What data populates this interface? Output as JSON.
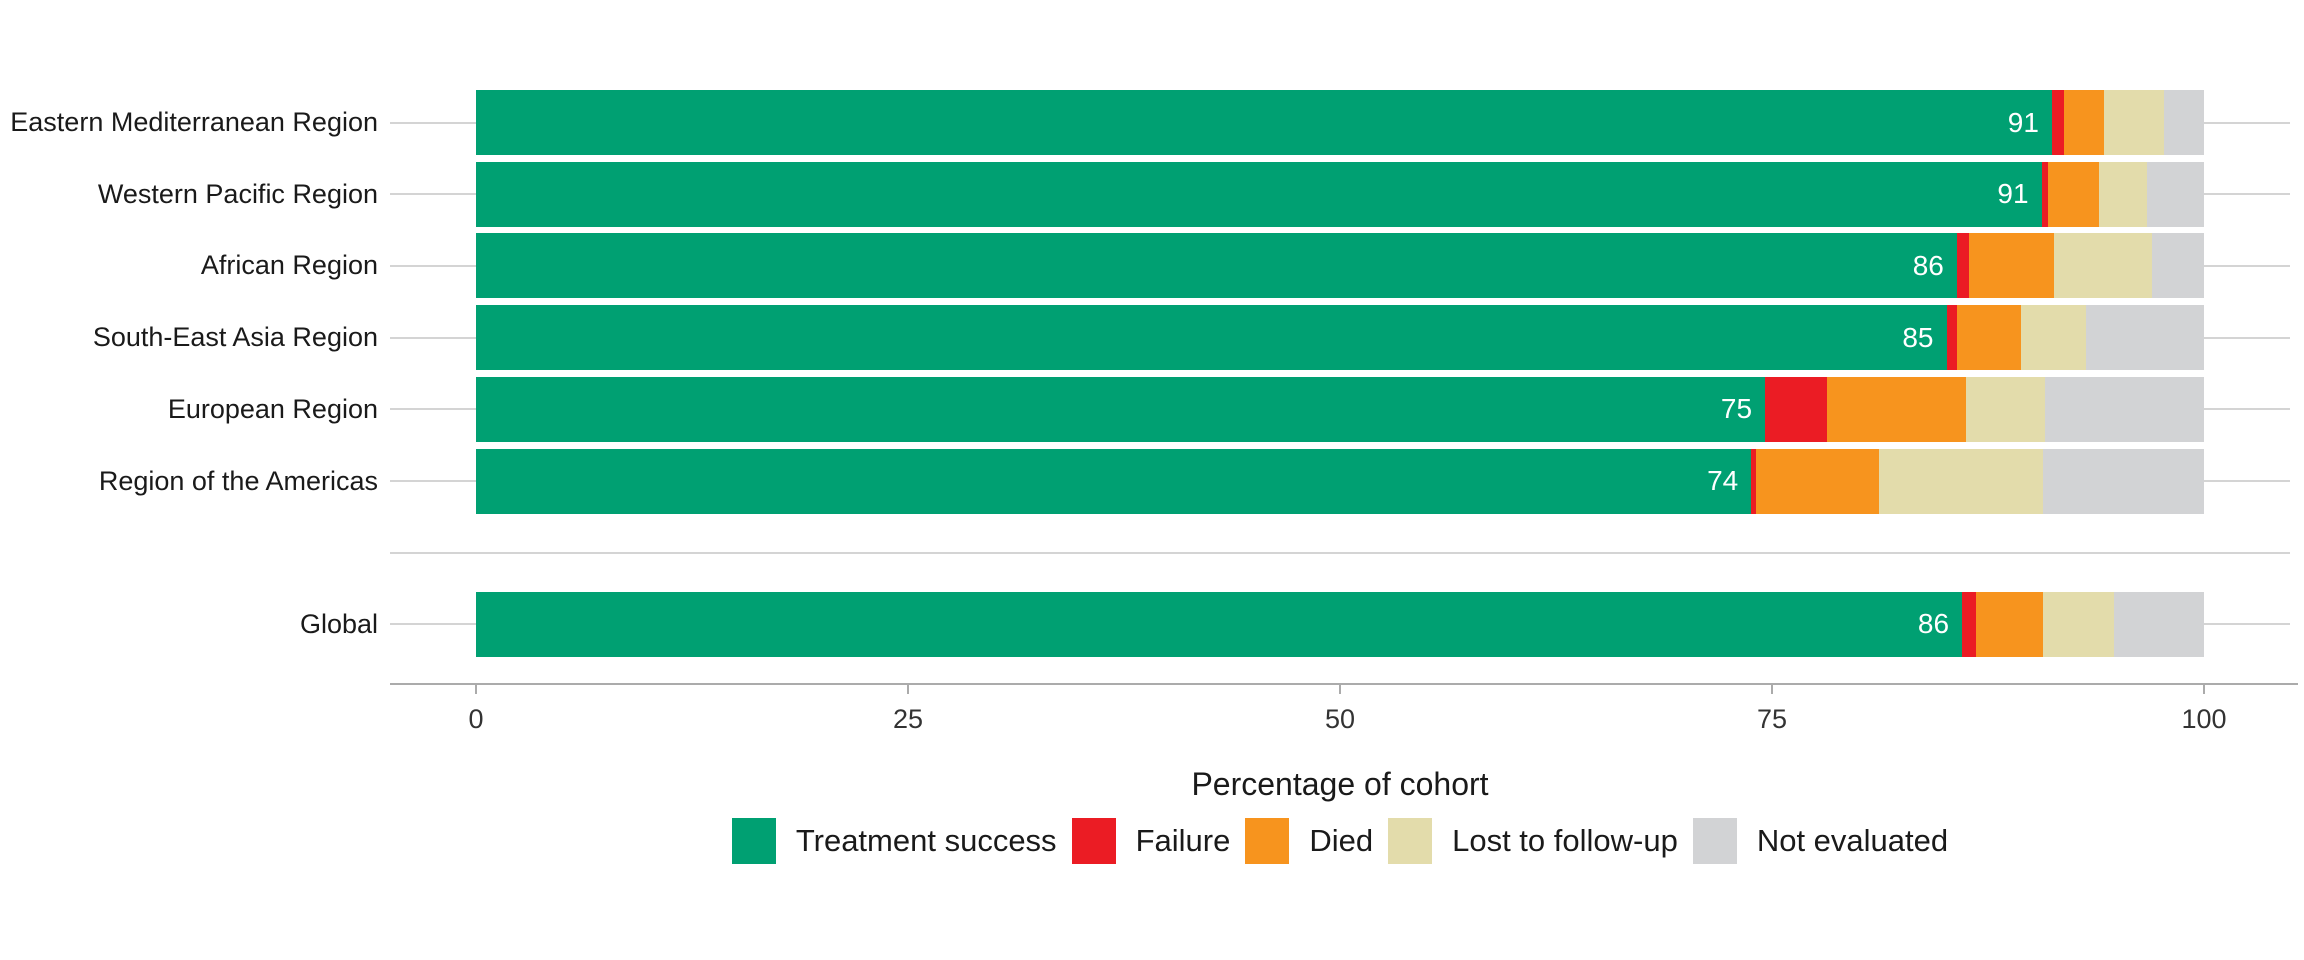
{
  "chart_data": {
    "type": "bar",
    "orientation": "horizontal",
    "stacked": true,
    "title": "",
    "xlabel": "Percentage of cohort",
    "ylabel": "",
    "xlim": [
      0,
      100
    ],
    "x_tick_labels": [
      "0",
      "25",
      "50",
      "75",
      "100"
    ],
    "x_tick_values": [
      0,
      25,
      50,
      75,
      100
    ],
    "grid": "horizontal-category-lines",
    "legend_position": "bottom",
    "separator_before_last_category": true,
    "categories": [
      "Eastern Mediterranean Region",
      "Western Pacific Region",
      "African Region",
      "South-East Asia Region",
      "European Region",
      "Region of the Americas",
      "Global"
    ],
    "bar_value_labels": [
      "91",
      "91",
      "86",
      "85",
      "75",
      "74",
      "86"
    ],
    "series": [
      {
        "name": "Treatment success",
        "color": "#00A072",
        "values": [
          91.2,
          90.6,
          85.7,
          85.1,
          74.6,
          73.8,
          86.0
        ]
      },
      {
        "name": "Failure",
        "color": "#EB1C24",
        "values": [
          0.7,
          0.4,
          0.7,
          0.6,
          3.6,
          0.3,
          0.8
        ]
      },
      {
        "name": "Died",
        "color": "#F7941E",
        "values": [
          2.3,
          2.9,
          4.9,
          3.7,
          8.0,
          7.1,
          3.9
        ]
      },
      {
        "name": "Lost to follow-up",
        "color": "#E3DCAB",
        "values": [
          3.5,
          2.8,
          5.7,
          3.8,
          4.6,
          9.5,
          4.1
        ]
      },
      {
        "name": "Not evaluated",
        "color": "#D2D3D5",
        "values": [
          2.3,
          3.3,
          3.0,
          6.8,
          9.2,
          9.3,
          5.2
        ]
      }
    ]
  },
  "colors": {
    "background": "#FFFFFF",
    "gridline": "#D4D4D4",
    "axis_line": "#ABABAB",
    "tick_label": "#333333",
    "category_label": "#1A1A1A",
    "bar_value_label": "#FFFFFF"
  }
}
